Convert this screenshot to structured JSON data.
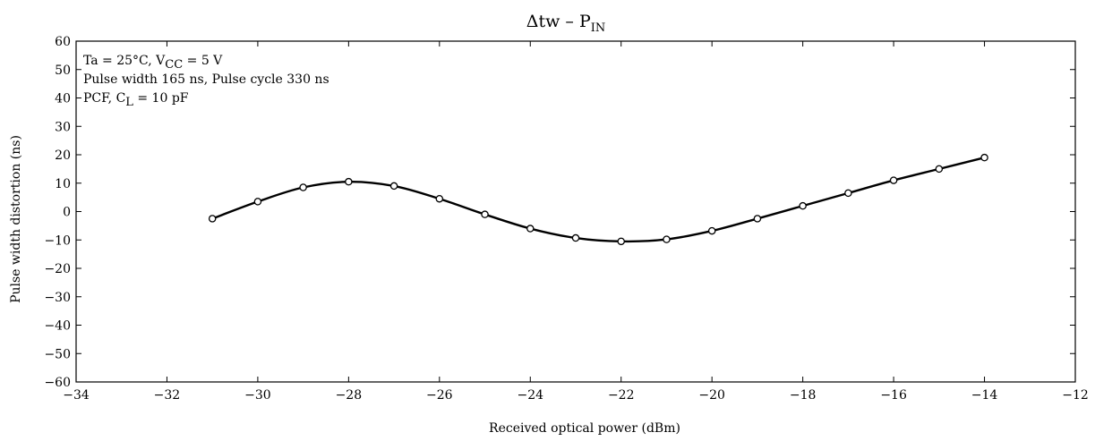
{
  "chart_data": {
    "type": "line",
    "title": {
      "prefix": "Δtw  –  P",
      "sub": "IN"
    },
    "xlabel": "Received optical power    (dBm)",
    "ylabel": "Pulse width distortion    (ns)",
    "xlim": [
      -34,
      -12
    ],
    "ylim": [
      -60,
      60
    ],
    "x_ticks": [
      -34,
      -32,
      -30,
      -28,
      -26,
      -24,
      -22,
      -20,
      -18,
      -16,
      -14,
      -12
    ],
    "y_ticks": [
      60,
      50,
      40,
      30,
      20,
      10,
      0,
      -10,
      -20,
      -30,
      -40,
      -50,
      -60
    ],
    "x_tick_labels": [
      "−34",
      "−32",
      "−30",
      "−28",
      "−26",
      "−24",
      "−22",
      "−20",
      "−18",
      "−16",
      "−14",
      "−12"
    ],
    "y_tick_labels": [
      "60",
      "50",
      "40",
      "30",
      "20",
      "10",
      "0",
      "−10",
      "−20",
      "−30",
      "−40",
      "−50",
      "−60"
    ],
    "grid": false,
    "series": [
      {
        "x": [
          -31,
          -30,
          -29,
          -28,
          -27,
          -26,
          -25,
          -24,
          -23,
          -22,
          -21,
          -20,
          -19,
          -18,
          -17,
          -16,
          -15,
          -14
        ],
        "y": [
          -2.5,
          3.5,
          8.5,
          10.5,
          9,
          4.5,
          -1,
          -6,
          -9.3,
          -10.5,
          -9.8,
          -6.8,
          -2.5,
          2,
          6.5,
          11,
          15,
          19
        ]
      }
    ],
    "annotations": [
      {
        "pre": "Ta = 25°C, V",
        "sub": "CC",
        "post": " = 5 V"
      },
      {
        "pre": "Pulse width 165 ns, Pulse cycle 330 ns",
        "sub": "",
        "post": ""
      },
      {
        "pre": "PCF, C",
        "sub": "L",
        "post": " = 10 pF"
      }
    ],
    "colors": {
      "line": "#000000",
      "marker_fill": "#ffffff",
      "frame": "#000000"
    }
  }
}
